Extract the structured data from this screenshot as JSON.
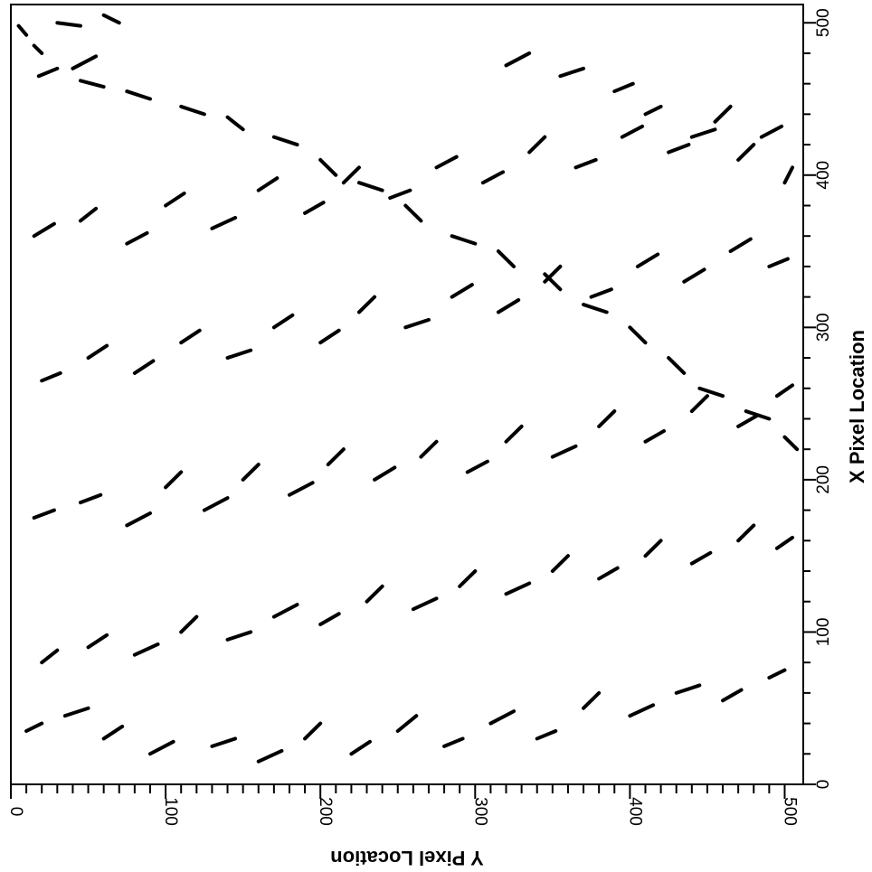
{
  "chart_data": {
    "type": "scatter",
    "title": "",
    "xlabel": "X Pixel Location",
    "ylabel": "Y Pixel Location",
    "xlim": [
      0,
      512
    ],
    "ylim": [
      0,
      512
    ],
    "x_ticks": [
      "0",
      "100",
      "200",
      "300",
      "400",
      "500"
    ],
    "y_ticks": [
      "0",
      "100",
      "200",
      "300",
      "400",
      "500"
    ],
    "grid": false,
    "mark_style": "short dark line segments (fibers)",
    "color": "#000000",
    "segments": [
      [
        498,
        5,
        492,
        10
      ],
      [
        485,
        15,
        480,
        20
      ],
      [
        500,
        30,
        498,
        45
      ],
      [
        505,
        60,
        500,
        70
      ],
      [
        478,
        55,
        470,
        40
      ],
      [
        470,
        30,
        465,
        18
      ],
      [
        462,
        45,
        458,
        60
      ],
      [
        455,
        75,
        450,
        90
      ],
      [
        445,
        110,
        440,
        125
      ],
      [
        438,
        140,
        430,
        150
      ],
      [
        425,
        170,
        420,
        185
      ],
      [
        410,
        200,
        400,
        210
      ],
      [
        395,
        225,
        390,
        240
      ],
      [
        380,
        255,
        370,
        265
      ],
      [
        360,
        285,
        355,
        300
      ],
      [
        350,
        315,
        340,
        325
      ],
      [
        335,
        345,
        325,
        355
      ],
      [
        315,
        370,
        310,
        385
      ],
      [
        300,
        400,
        290,
        410
      ],
      [
        280,
        425,
        270,
        435
      ],
      [
        260,
        445,
        255,
        460
      ],
      [
        245,
        475,
        240,
        490
      ],
      [
        228,
        500,
        220,
        508
      ],
      [
        472,
        320,
        480,
        335
      ],
      [
        465,
        355,
        470,
        370
      ],
      [
        455,
        390,
        460,
        402
      ],
      [
        440,
        410,
        445,
        420
      ],
      [
        425,
        440,
        430,
        455
      ],
      [
        410,
        470,
        420,
        480
      ],
      [
        395,
        500,
        405,
        505
      ],
      [
        35,
        10,
        40,
        20
      ],
      [
        45,
        35,
        50,
        50
      ],
      [
        30,
        60,
        38,
        72
      ],
      [
        20,
        90,
        28,
        105
      ],
      [
        25,
        130,
        30,
        145
      ],
      [
        15,
        160,
        22,
        175
      ],
      [
        30,
        190,
        40,
        200
      ],
      [
        20,
        220,
        28,
        232
      ],
      [
        35,
        250,
        45,
        262
      ],
      [
        25,
        280,
        30,
        292
      ],
      [
        40,
        310,
        48,
        325
      ],
      [
        30,
        340,
        35,
        352
      ],
      [
        50,
        370,
        60,
        380
      ],
      [
        45,
        400,
        52,
        415
      ],
      [
        60,
        430,
        65,
        445
      ],
      [
        55,
        460,
        62,
        472
      ],
      [
        70,
        490,
        75,
        500
      ],
      [
        80,
        20,
        88,
        30
      ],
      [
        90,
        50,
        98,
        62
      ],
      [
        85,
        80,
        92,
        95
      ],
      [
        100,
        110,
        110,
        120
      ],
      [
        95,
        140,
        100,
        155
      ],
      [
        110,
        170,
        118,
        185
      ],
      [
        105,
        200,
        112,
        212
      ],
      [
        120,
        230,
        130,
        240
      ],
      [
        115,
        260,
        122,
        275
      ],
      [
        130,
        290,
        140,
        300
      ],
      [
        125,
        320,
        132,
        335
      ],
      [
        140,
        350,
        150,
        360
      ],
      [
        135,
        380,
        142,
        392
      ],
      [
        150,
        410,
        160,
        420
      ],
      [
        145,
        440,
        152,
        452
      ],
      [
        160,
        470,
        170,
        480
      ],
      [
        155,
        495,
        162,
        505
      ],
      [
        175,
        15,
        180,
        28
      ],
      [
        185,
        45,
        190,
        58
      ],
      [
        170,
        75,
        178,
        90
      ],
      [
        195,
        100,
        205,
        110
      ],
      [
        180,
        125,
        188,
        140
      ],
      [
        200,
        150,
        210,
        160
      ],
      [
        190,
        180,
        198,
        195
      ],
      [
        210,
        205,
        220,
        215
      ],
      [
        200,
        235,
        208,
        248
      ],
      [
        215,
        265,
        225,
        275
      ],
      [
        205,
        295,
        212,
        308
      ],
      [
        225,
        320,
        235,
        330
      ],
      [
        215,
        350,
        222,
        365
      ],
      [
        235,
        380,
        245,
        390
      ],
      [
        225,
        410,
        232,
        422
      ],
      [
        245,
        440,
        255,
        450
      ],
      [
        235,
        470,
        242,
        482
      ],
      [
        255,
        495,
        262,
        505
      ],
      [
        265,
        20,
        270,
        32
      ],
      [
        280,
        50,
        288,
        62
      ],
      [
        270,
        80,
        278,
        92
      ],
      [
        290,
        110,
        298,
        122
      ],
      [
        280,
        140,
        285,
        155
      ],
      [
        300,
        170,
        308,
        182
      ],
      [
        290,
        200,
        298,
        212
      ],
      [
        310,
        225,
        320,
        235
      ],
      [
        300,
        255,
        305,
        270
      ],
      [
        320,
        285,
        328,
        298
      ],
      [
        310,
        315,
        318,
        328
      ],
      [
        330,
        345,
        340,
        355
      ],
      [
        320,
        375,
        325,
        388
      ],
      [
        340,
        405,
        348,
        418
      ],
      [
        330,
        435,
        338,
        448
      ],
      [
        350,
        465,
        358,
        478
      ],
      [
        340,
        490,
        345,
        502
      ],
      [
        360,
        15,
        368,
        28
      ],
      [
        370,
        45,
        378,
        55
      ],
      [
        355,
        75,
        362,
        88
      ],
      [
        380,
        100,
        388,
        112
      ],
      [
        365,
        130,
        372,
        145
      ],
      [
        390,
        160,
        398,
        172
      ],
      [
        375,
        190,
        382,
        202
      ],
      [
        395,
        215,
        405,
        225
      ],
      [
        385,
        245,
        390,
        258
      ],
      [
        405,
        275,
        412,
        288
      ],
      [
        395,
        305,
        402,
        318
      ],
      [
        415,
        335,
        425,
        345
      ],
      [
        405,
        365,
        410,
        378
      ],
      [
        425,
        395,
        432,
        408
      ],
      [
        415,
        425,
        420,
        438
      ],
      [
        435,
        455,
        445,
        465
      ],
      [
        425,
        485,
        432,
        498
      ]
    ]
  }
}
